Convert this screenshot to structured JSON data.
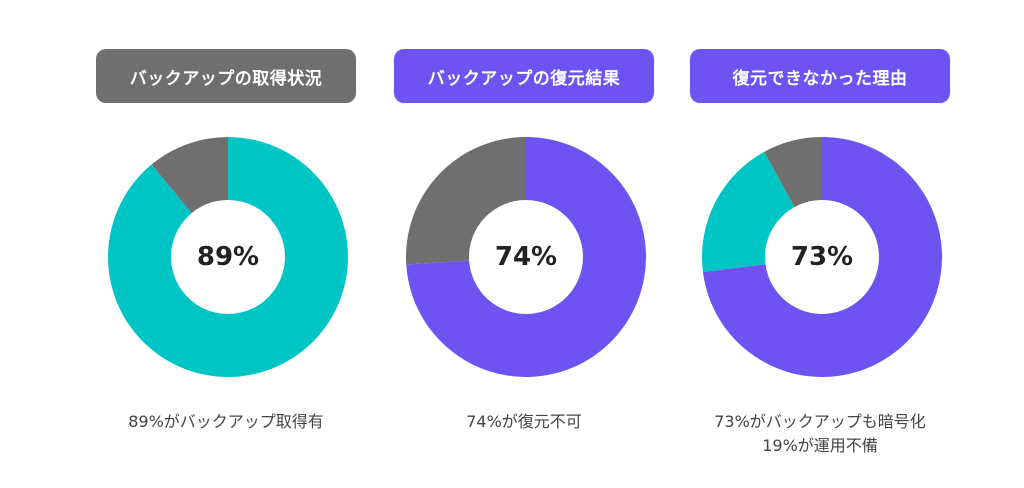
{
  "colors": {
    "teal": "#00C5C5",
    "purple": "#6F52F2",
    "gray": "#6F6F6F",
    "text": "#222222"
  },
  "chart_data": [
    {
      "type": "pie",
      "title": "バックアップの取得状況",
      "title_bg": "#6F6F6F",
      "center_label": "89%",
      "caption_lines": [
        "89%がバックアップ取得有"
      ],
      "slices": [
        {
          "value": 89,
          "color": "#00C5C5"
        },
        {
          "value": 11,
          "color": "#6F6F6F"
        }
      ]
    },
    {
      "type": "pie",
      "title": "バックアップの復元結果",
      "title_bg": "#6F52F2",
      "center_label": "74%",
      "caption_lines": [
        "74%が復元不可"
      ],
      "slices": [
        {
          "value": 74,
          "color": "#6F52F2"
        },
        {
          "value": 26,
          "color": "#6F6F6F"
        }
      ]
    },
    {
      "type": "pie",
      "title": "復元できなかった理由",
      "title_bg": "#6F52F2",
      "center_label": "73%",
      "caption_lines": [
        "73%がバックアップも暗号化",
        "19%が運用不備"
      ],
      "slices": [
        {
          "value": 73,
          "color": "#6F52F2"
        },
        {
          "value": 19,
          "color": "#00C5C5"
        },
        {
          "value": 8,
          "color": "#6F6F6F"
        }
      ]
    }
  ]
}
